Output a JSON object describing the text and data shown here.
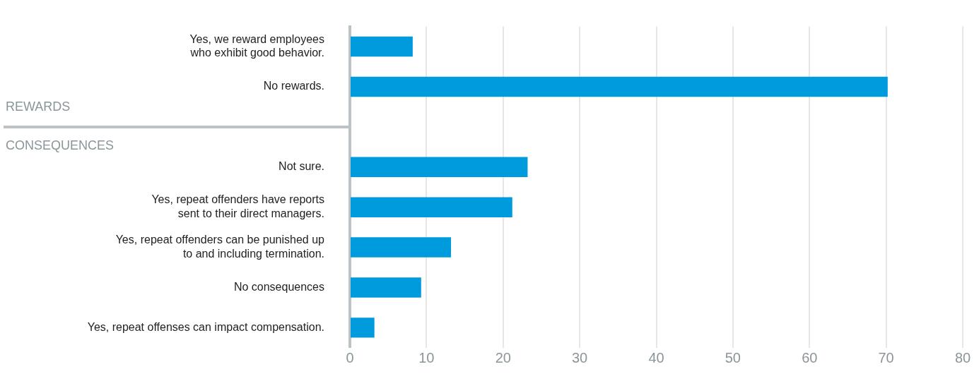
{
  "chart_data": {
    "type": "bar",
    "orientation": "horizontal",
    "categories": [
      "Yes, we reward employees\nwho exhibit good behavior.",
      "No rewards.",
      null,
      "Not sure.",
      "Yes, repeat offenders have reports\nsent to their direct managers.",
      "Yes, repeat offenders can be punished up\nto and including termination.",
      "No consequences",
      "Yes, repeat offenses can impact compensation."
    ],
    "values": [
      8.2,
      70.2,
      null,
      23.2,
      21.2,
      13.2,
      9.3,
      3.2
    ],
    "color": "#009bdc",
    "xlim": [
      0,
      80
    ],
    "xticks": [
      0,
      10,
      20,
      30,
      40,
      50,
      60,
      70,
      80
    ],
    "grid": "x",
    "legend": false,
    "annotations": [
      "REWARDS",
      "CONSEQUENCES"
    ]
  }
}
